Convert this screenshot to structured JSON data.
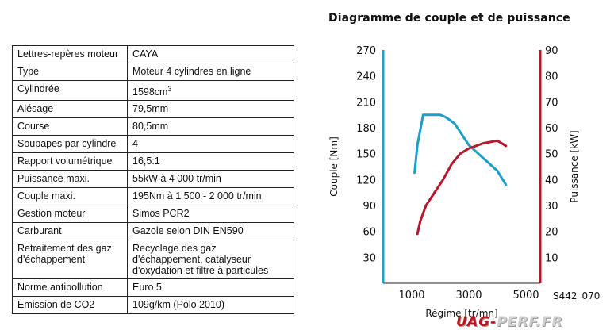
{
  "spec_table": [
    {
      "label": "Lettres-repères moteur",
      "value": "CAYA"
    },
    {
      "label": "Type",
      "value": "Moteur 4 cylindres en ligne"
    },
    {
      "label": "Cylindrée",
      "value": "1598cm",
      "sup": "3"
    },
    {
      "label": "Alésage",
      "value": "79,5mm"
    },
    {
      "label": "Course",
      "value": "80,5mm"
    },
    {
      "label": "Soupapes par cylindre",
      "value": "4"
    },
    {
      "label": "Rapport volumétrique",
      "value": "16,5:1"
    },
    {
      "label": "Puissance maxi.",
      "value": "55kW à 4 000 tr/min"
    },
    {
      "label": "Couple maxi.",
      "value": "195Nm à 1 500 - 2 000 tr/min"
    },
    {
      "label": "Gestion moteur",
      "value": "Simos PCR2"
    },
    {
      "label": "Carburant",
      "value": "Gazole selon DIN EN590"
    },
    {
      "label": "Retraitement des gaz\nd'échappement",
      "value": "Recyclage des gaz\nd'échappement, catalyseur\nd'oxydation et filtre à particules"
    },
    {
      "label": "Norme antipollution",
      "value": "Euro 5"
    },
    {
      "label": "Emission de CO2",
      "value": "109g/km (Polo 2010)"
    }
  ],
  "chart_data": {
    "type": "line",
    "title": "Diagramme de couple et de puissance",
    "xlabel": "Régime [tr/mn]",
    "ylabel_left": "Couple [Nm]",
    "ylabel_right": "Puissance [kW]",
    "x_ticks": [
      1000,
      3000,
      5000
    ],
    "y_left_ticks": [
      30,
      60,
      90,
      120,
      150,
      180,
      210,
      240,
      270
    ],
    "y_right_ticks": [
      10,
      20,
      30,
      40,
      50,
      60,
      70,
      80,
      90
    ],
    "xlim": [
      0,
      5500
    ],
    "ylim_left": [
      0,
      270
    ],
    "ylim_right": [
      0,
      90
    ],
    "left_axis_color": "#1b9fc9",
    "right_axis_color": "#b5172b",
    "series": [
      {
        "axis": "left",
        "color": "#1b9fc9",
        "x": [
          1100,
          1200,
          1400,
          1500,
          2000,
          2200,
          2500,
          2700,
          3000,
          3500,
          4000,
          4300
        ],
        "y": [
          128,
          160,
          195,
          195,
          195,
          192,
          185,
          175,
          160,
          145,
          130,
          114
        ]
      },
      {
        "axis": "right",
        "color": "#b5172b",
        "x": [
          1200,
          1300,
          1500,
          1800,
          2100,
          2400,
          2700,
          3000,
          3500,
          4000,
          4300
        ],
        "y": [
          19,
          24,
          30,
          35,
          40,
          46,
          50,
          52,
          54,
          55,
          53
        ]
      }
    ]
  },
  "figure_code": "S442_070",
  "watermark": {
    "part1": "UAG-",
    "part2": "PERF.FR"
  }
}
